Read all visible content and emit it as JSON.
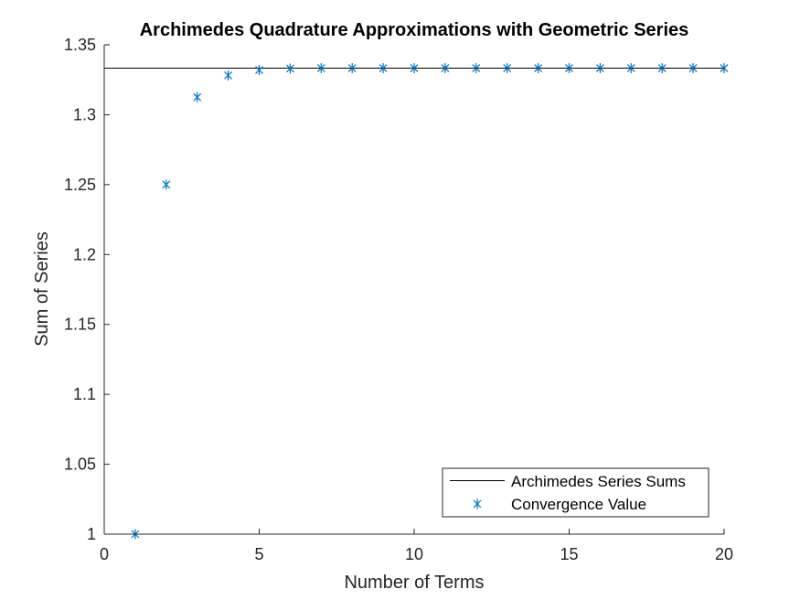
{
  "chart_data": {
    "type": "scatter",
    "title": "Archimedes Quadrature Approximations with Geometric Series",
    "xlabel": "Number of Terms",
    "ylabel": "Sum of Series",
    "xlim": [
      0,
      20
    ],
    "ylim": [
      1,
      1.35
    ],
    "xticks": [
      0,
      5,
      10,
      15,
      20
    ],
    "xtick_labels": [
      "0",
      "5",
      "10",
      "15",
      "20"
    ],
    "yticks": [
      1,
      1.05,
      1.1,
      1.15,
      1.2,
      1.25,
      1.3,
      1.35
    ],
    "ytick_labels": [
      "1",
      "1.05",
      "1.1",
      "1.15",
      "1.2",
      "1.25",
      "1.3",
      "1.35"
    ],
    "grid": false,
    "legend_position": "bottom-right",
    "series": [
      {
        "name": "Archimedes Series Sums",
        "kind": "line",
        "color": "#000000",
        "x": [
          0,
          20
        ],
        "y": [
          1.3333,
          1.3333
        ]
      },
      {
        "name": "Convergence Value",
        "kind": "scatter",
        "marker": "asterisk",
        "color": "#0072BD",
        "x": [
          1,
          2,
          3,
          4,
          5,
          6,
          7,
          8,
          9,
          10,
          11,
          12,
          13,
          14,
          15,
          16,
          17,
          18,
          19,
          20
        ],
        "y": [
          1,
          1.25,
          1.3125,
          1.3281,
          1.332,
          1.333,
          1.3333,
          1.3333,
          1.3333,
          1.3333,
          1.3333,
          1.3333,
          1.3333,
          1.3333,
          1.3333,
          1.3333,
          1.3333,
          1.3333,
          1.3333,
          1.3333
        ]
      }
    ]
  }
}
